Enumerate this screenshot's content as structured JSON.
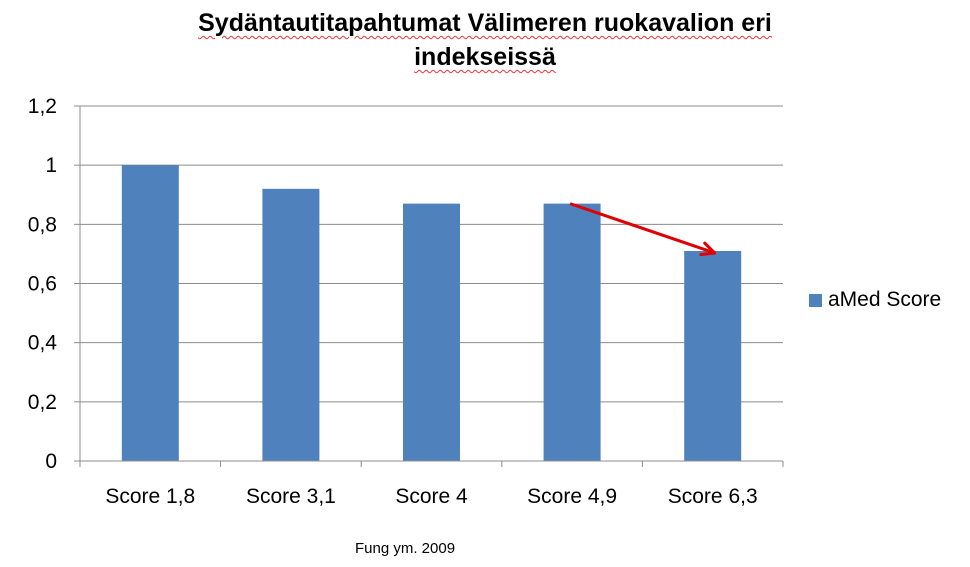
{
  "chart_data": {
    "type": "bar",
    "title_lines": [
      "Sydäntautitapahtumat Välimeren ruokavalion eri",
      "indekseissä"
    ],
    "categories": [
      "Score 1,8",
      "Score 3,1",
      "Score 4",
      "Score 4,9",
      "Score 6,3"
    ],
    "series": [
      {
        "name": "aMed Score",
        "values": [
          1.0,
          0.92,
          0.87,
          0.87,
          0.71
        ],
        "color": "#4f81bd"
      }
    ],
    "ylim": [
      0,
      1.2
    ],
    "y_ticks": [
      "0",
      "0,2",
      "0,4",
      "0,6",
      "0,8",
      "1",
      "1,2"
    ],
    "y_tick_values": [
      0,
      0.2,
      0.4,
      0.6,
      0.8,
      1.0,
      1.2
    ],
    "grid": true,
    "legend_position": "right",
    "annotation_arrow": {
      "from_category": 3,
      "to_category": 4,
      "color": "#e00000"
    },
    "source": "Fung ym. 2009"
  }
}
